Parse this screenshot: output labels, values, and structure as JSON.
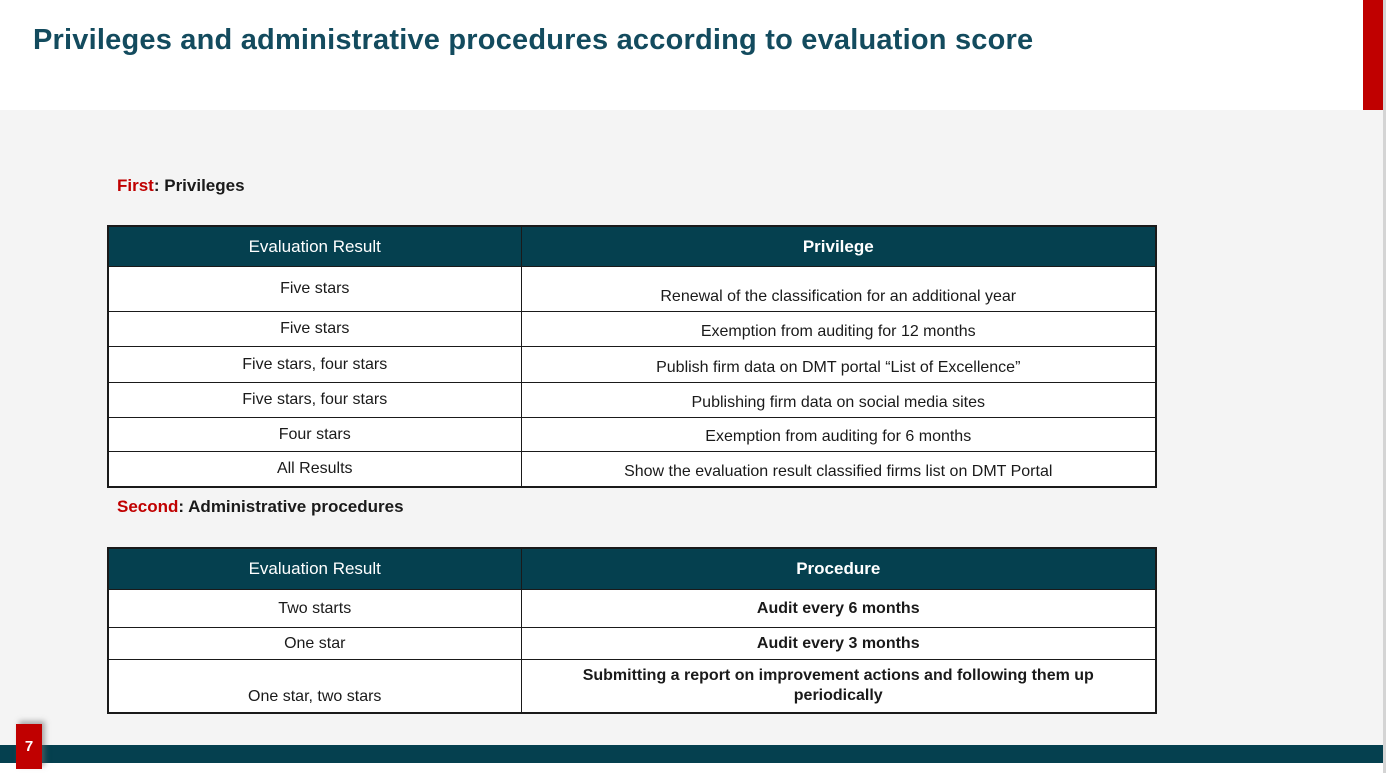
{
  "slide": {
    "title": "Privileges and administrative procedures according to evaluation score",
    "page_number": "7"
  },
  "colors": {
    "teal_dark": "#05404f",
    "accent_red": "#c00000",
    "content_background": "#f4f4f4",
    "title_text": "#134b5e"
  },
  "sections": [
    {
      "label_prefix": "First",
      "label_rest": ": Privileges",
      "table": {
        "headers": [
          "Evaluation Result",
          "Privilege"
        ],
        "rows": [
          [
            "Five stars",
            "Renewal of the classification for an additional year"
          ],
          [
            "Five stars",
            "Exemption from auditing for 12 months"
          ],
          [
            "Five stars, four stars",
            "Publish firm data on DMT portal “List of Excellence”"
          ],
          [
            "Five stars, four stars",
            "Publishing firm data on social media sites"
          ],
          [
            "Four stars",
            "Exemption from auditing for 6 months"
          ],
          [
            "All Results",
            "Show the evaluation result classified firms list on DMT Portal"
          ]
        ]
      }
    },
    {
      "label_prefix": "Second",
      "label_rest": ": Administrative procedures",
      "table": {
        "headers": [
          "Evaluation Result",
          "Procedure"
        ],
        "rows": [
          [
            "Two starts",
            "Audit every 6 months"
          ],
          [
            "One star",
            "Audit every 3 months"
          ],
          [
            "One star, two stars",
            "Submitting a report on improvement actions and following them up periodically"
          ]
        ]
      }
    }
  ]
}
